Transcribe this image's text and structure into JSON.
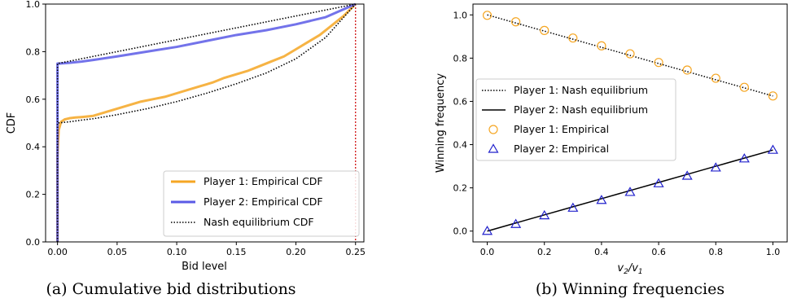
{
  "chart_data": [
    {
      "type": "line",
      "caption": "(a) Cumulative bid distributions",
      "xlabel": "Bid level",
      "ylabel": "CDF",
      "xlim": [
        -0.01,
        0.257
      ],
      "ylim": [
        0.0,
        1.0
      ],
      "xticks": [
        "0.00",
        "0.05",
        "0.10",
        "0.15",
        "0.20",
        "0.25"
      ],
      "xtick_values": [
        0.0,
        0.05,
        0.1,
        0.15,
        0.2,
        0.25
      ],
      "yticks": [
        "0.0",
        "0.2",
        "0.4",
        "0.6",
        "0.8",
        "1.0"
      ],
      "ytick_values": [
        0.0,
        0.2,
        0.4,
        0.6,
        0.8,
        1.0
      ],
      "grid": false,
      "legend_position": "lower-right",
      "vline": {
        "x": 0.25,
        "color": "#cc0000",
        "style": "dotted"
      },
      "series": [
        {
          "name": "Player 1: Empirical CDF",
          "color": "#f5a623",
          "style": "solid",
          "x": [
            0.0,
            0.0,
            0.0005,
            0.001,
            0.003,
            0.006,
            0.01,
            0.015,
            0.02,
            0.03,
            0.04,
            0.05,
            0.06,
            0.07,
            0.08,
            0.09,
            0.1,
            0.11,
            0.12,
            0.13,
            0.14,
            0.15,
            0.16,
            0.17,
            0.18,
            0.19,
            0.2,
            0.21,
            0.22,
            0.23,
            0.24,
            0.25
          ],
          "y": [
            0.0,
            0.36,
            0.42,
            0.47,
            0.505,
            0.515,
            0.52,
            0.523,
            0.525,
            0.53,
            0.545,
            0.56,
            0.575,
            0.59,
            0.6,
            0.61,
            0.625,
            0.64,
            0.655,
            0.67,
            0.69,
            0.705,
            0.72,
            0.74,
            0.76,
            0.78,
            0.81,
            0.84,
            0.87,
            0.91,
            0.95,
            1.0
          ]
        },
        {
          "name": "Player 2: Empirical CDF",
          "color": "#5a5ae6",
          "style": "solid",
          "x": [
            0.0,
            0.0,
            0.002,
            0.01,
            0.02,
            0.03,
            0.05,
            0.075,
            0.1,
            0.125,
            0.15,
            0.175,
            0.2,
            0.225,
            0.25
          ],
          "y": [
            0.0,
            0.75,
            0.75,
            0.753,
            0.758,
            0.765,
            0.78,
            0.8,
            0.82,
            0.845,
            0.87,
            0.89,
            0.915,
            0.945,
            1.0
          ]
        },
        {
          "name": "Nash equilibrium CDF",
          "color": "#000000",
          "style": "dotted",
          "x": [
            0.0,
            0.0,
            0.0,
            0.25
          ],
          "y": [
            0.0,
            0.75,
            0.75,
            1.0
          ],
          "note_series": "Player 2 equilibrium: 0.75 at 0 then linear to 1 at 0.25"
        },
        {
          "name": "",
          "color": "#000000",
          "style": "dotted",
          "x": [
            0.0,
            0.0,
            0.01,
            0.02,
            0.03,
            0.05,
            0.075,
            0.1,
            0.125,
            0.15,
            0.175,
            0.2,
            0.225,
            0.25
          ],
          "y": [
            0.0,
            0.5,
            0.505,
            0.512,
            0.518,
            0.535,
            0.56,
            0.59,
            0.625,
            0.665,
            0.71,
            0.77,
            0.86,
            1.0
          ]
        }
      ]
    },
    {
      "type": "scatter",
      "caption": "(b) Winning frequencies",
      "xlabel": "v2/v1",
      "ylabel": "Winning frequency",
      "xlim": [
        -0.05,
        1.05
      ],
      "ylim": [
        -0.05,
        1.05
      ],
      "xticks": [
        "0.0",
        "0.2",
        "0.4",
        "0.6",
        "0.8",
        "1.0"
      ],
      "xtick_values": [
        0.0,
        0.2,
        0.4,
        0.6,
        0.8,
        1.0
      ],
      "yticks": [
        "0.0",
        "0.2",
        "0.4",
        "0.6",
        "0.8",
        "1.0"
      ],
      "ytick_values": [
        0.0,
        0.2,
        0.4,
        0.6,
        0.8,
        1.0
      ],
      "grid": false,
      "legend_position": "center-left",
      "x": [
        0.0,
        0.1,
        0.2,
        0.3,
        0.4,
        0.5,
        0.6,
        0.7,
        0.8,
        0.9,
        1.0
      ],
      "series": [
        {
          "name": "Player 1: Nash equilibrium",
          "color": "#000000",
          "style": "dotted-line",
          "values": [
            1.0,
            0.9625,
            0.925,
            0.8875,
            0.85,
            0.8125,
            0.775,
            0.7375,
            0.7,
            0.6625,
            0.625
          ]
        },
        {
          "name": "Player 2: Nash equilibrium",
          "color": "#000000",
          "style": "solid-line",
          "values": [
            0.0,
            0.0375,
            0.075,
            0.1125,
            0.15,
            0.1875,
            0.225,
            0.2625,
            0.3,
            0.3375,
            0.375
          ]
        },
        {
          "name": "Player 1: Empirical",
          "color": "#f5a623",
          "style": "circle-marker",
          "values": [
            0.998,
            0.968,
            0.928,
            0.893,
            0.857,
            0.82,
            0.78,
            0.745,
            0.707,
            0.665,
            0.625
          ]
        },
        {
          "name": "Player 2: Empirical",
          "color": "#2222cc",
          "style": "triangle-marker",
          "values": [
            0.0,
            0.032,
            0.072,
            0.107,
            0.143,
            0.18,
            0.22,
            0.255,
            0.293,
            0.335,
            0.375
          ]
        }
      ]
    }
  ]
}
